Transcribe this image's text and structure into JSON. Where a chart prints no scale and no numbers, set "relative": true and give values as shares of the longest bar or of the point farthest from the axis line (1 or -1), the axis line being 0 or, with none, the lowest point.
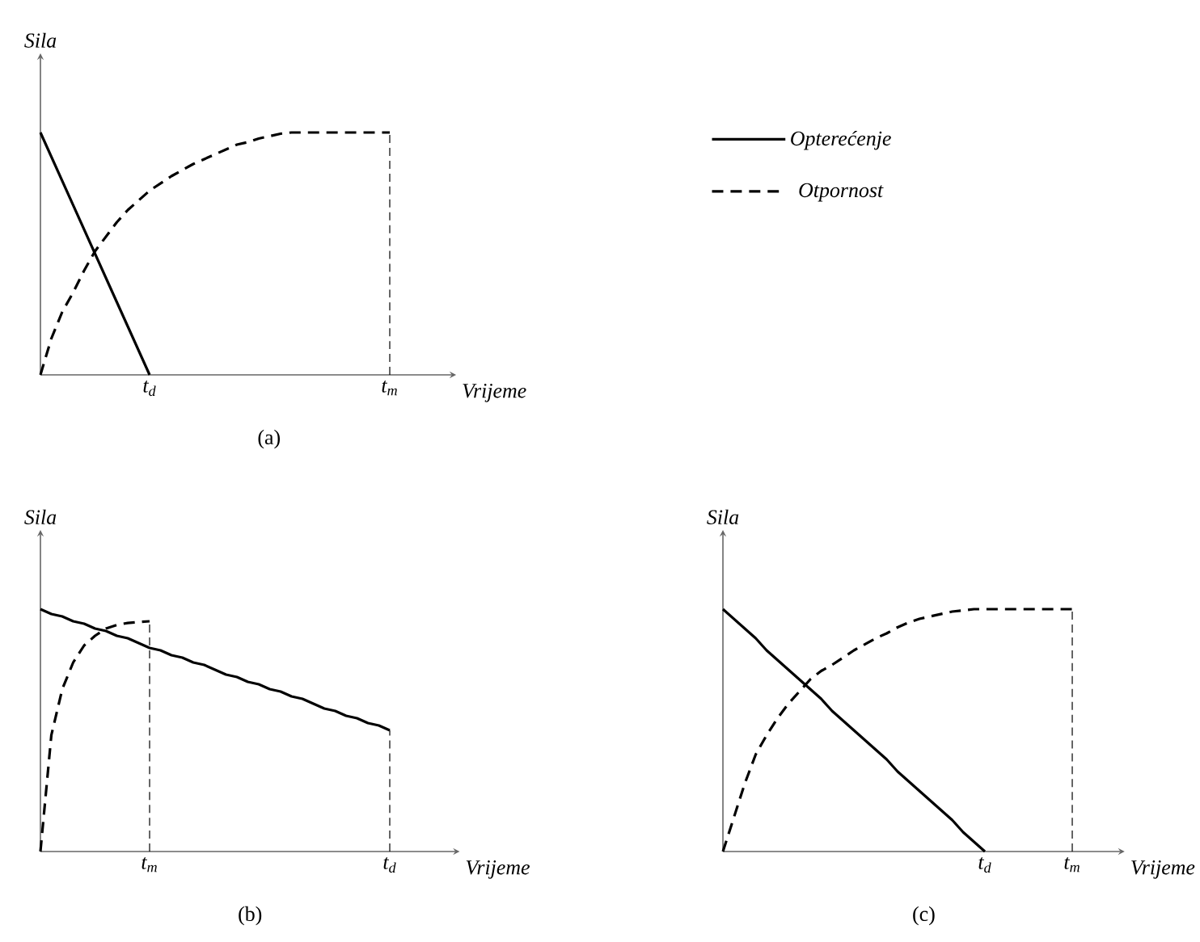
{
  "chart_data": [
    {
      "type": "line",
      "relative": true,
      "xlabel": "Vrijeme",
      "ylabel": "Sila",
      "legend": "right",
      "annotations": [
        "(a)"
      ],
      "categories": [
        null,
        null,
        null,
        null,
        null,
        null,
        null,
        null,
        null,
        null,
        "t$_{d}$",
        null,
        null,
        null,
        null,
        null,
        null,
        null,
        null,
        null,
        null,
        null,
        null,
        null,
        null,
        null,
        null,
        null,
        null,
        null,
        null,
        null,
        "t$_{m}$"
      ],
      "ref_lines": [
        {
          "axis": "x",
          "value": "t$_{m}$",
          "line_style": "dashed"
        }
      ],
      "series": [
        {
          "name": "Opterećenje",
          "color": "#000000",
          "line_style": "solid",
          "values": [
            1,
            0.9,
            0.8,
            0.7,
            0.6,
            0.5,
            0.4,
            0.3,
            0.2,
            0.1,
            0,
            null,
            null,
            null,
            null,
            null,
            null,
            null,
            null,
            null,
            null,
            null,
            null,
            null,
            null,
            null,
            null,
            null,
            null,
            null,
            null,
            null,
            null
          ]
        },
        {
          "name": "Otpornost",
          "color": "#000000",
          "line_style": "dashed",
          "values": [
            0,
            0.15,
            0.26,
            0.34,
            0.43,
            0.51,
            0.57,
            0.63,
            0.68,
            0.72,
            0.76,
            0.79,
            0.82,
            0.845,
            0.87,
            0.89,
            0.91,
            0.93,
            0.95,
            0.96,
            0.975,
            0.985,
            0.995,
            1,
            1,
            1,
            1,
            1,
            1,
            1,
            1,
            1,
            1
          ]
        }
      ]
    },
    {
      "type": "line",
      "relative": true,
      "xlabel": "Vrijeme",
      "ylabel": "Sila",
      "annotations": [
        "(b)"
      ],
      "categories": [
        null,
        null,
        null,
        null,
        null,
        null,
        null,
        null,
        null,
        null,
        "t$_{m}$",
        null,
        null,
        null,
        null,
        null,
        null,
        null,
        null,
        null,
        null,
        null,
        null,
        null,
        null,
        null,
        null,
        null,
        null,
        null,
        null,
        null,
        "t$_{d}$"
      ],
      "ref_lines": [
        {
          "axis": "x",
          "value": "t$_{m}$",
          "line_style": "dashed"
        },
        {
          "axis": "x",
          "value": "t$_{d}$",
          "line_style": "dashed"
        }
      ],
      "series": [
        {
          "color": "#000000",
          "line_style": "solid",
          "values": [
            1,
            0.98,
            0.97,
            0.95,
            0.94,
            0.92,
            0.91,
            0.89,
            0.88,
            0.86,
            0.84,
            0.83,
            0.81,
            0.8,
            0.78,
            0.77,
            0.75,
            0.73,
            0.72,
            0.7,
            0.69,
            0.67,
            0.66,
            0.64,
            0.63,
            0.61,
            0.59,
            0.58,
            0.56,
            0.55,
            0.53,
            0.52,
            0.5
          ]
        },
        {
          "color": "#000000",
          "line_style": "dashed",
          "values": [
            0,
            0.48,
            0.67,
            0.78,
            0.85,
            0.89,
            0.92,
            0.935,
            0.943,
            0.947,
            0.95,
            null,
            null,
            null,
            null,
            null,
            null,
            null,
            null,
            null,
            null,
            null,
            null,
            null,
            null,
            null,
            null,
            null,
            null,
            null,
            null,
            null,
            null
          ]
        }
      ]
    },
    {
      "type": "line",
      "relative": true,
      "xlabel": "Vrijeme",
      "ylabel": "Sila",
      "annotations": [
        "(c)"
      ],
      "categories": [
        null,
        null,
        null,
        null,
        null,
        null,
        null,
        null,
        null,
        null,
        null,
        null,
        null,
        null,
        null,
        null,
        null,
        null,
        null,
        null,
        null,
        null,
        null,
        null,
        "t$_{d}$",
        null,
        null,
        null,
        null,
        null,
        null,
        null,
        "t$_{m}$"
      ],
      "ref_lines": [
        {
          "axis": "x",
          "value": "t$_{m}$",
          "line_style": "dashed"
        }
      ],
      "series": [
        {
          "color": "#000000",
          "line_style": "solid",
          "values": [
            1,
            0.96,
            0.92,
            0.88,
            0.83,
            0.79,
            0.75,
            0.71,
            0.67,
            0.63,
            0.58,
            0.54,
            0.5,
            0.46,
            0.42,
            0.38,
            0.33,
            0.29,
            0.25,
            0.21,
            0.17,
            0.13,
            0.08,
            0.04,
            0,
            null,
            null,
            null,
            null,
            null,
            null,
            null,
            null
          ]
        },
        {
          "color": "#000000",
          "line_style": "dashed",
          "values": [
            0,
            0.14,
            0.28,
            0.4,
            0.48,
            0.55,
            0.61,
            0.66,
            0.71,
            0.745,
            0.77,
            0.8,
            0.83,
            0.855,
            0.88,
            0.9,
            0.925,
            0.945,
            0.96,
            0.97,
            0.98,
            0.99,
            0.995,
            1,
            1,
            1,
            1,
            1,
            1,
            1,
            1,
            1,
            1
          ]
        }
      ]
    }
  ]
}
